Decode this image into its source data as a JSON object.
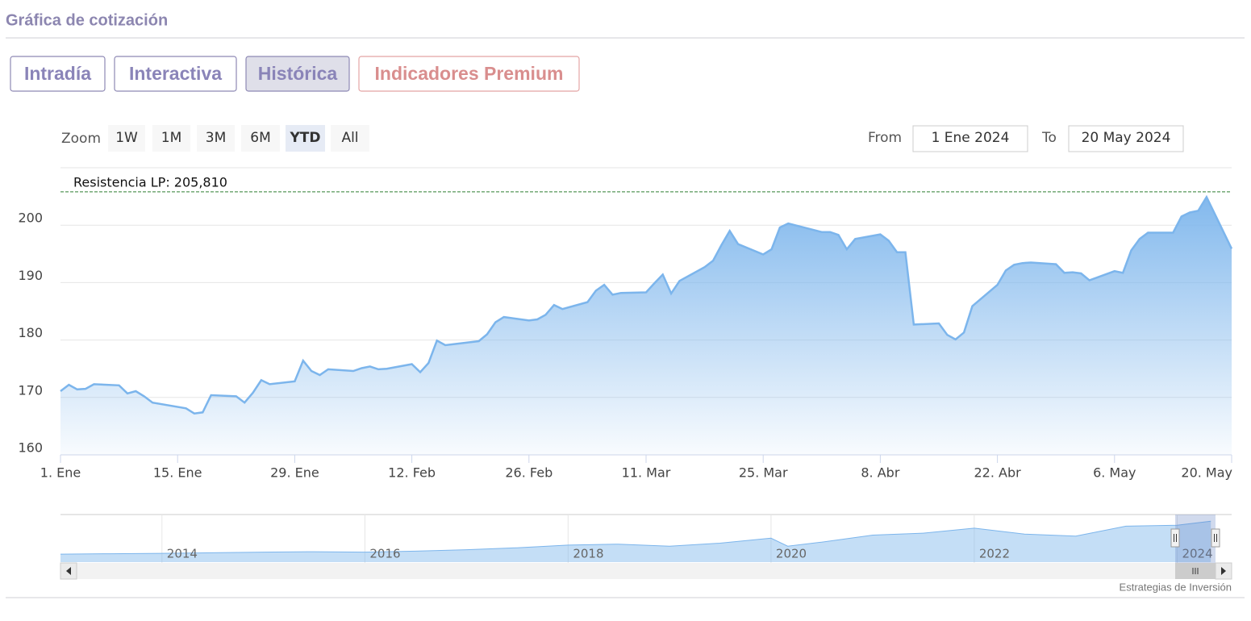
{
  "header": {
    "title": "Gráfica de cotización"
  },
  "tabs": [
    "Intradía",
    "Interactiva",
    "Histórica",
    "Indicadores Premium"
  ],
  "active_tab": 2,
  "zoom": {
    "label": "Zoom",
    "buttons": [
      "1W",
      "1M",
      "3M",
      "6M",
      "YTD",
      "All"
    ],
    "active": 4
  },
  "range": {
    "from_label": "From",
    "from": "1 Ene 2024",
    "to_label": "To",
    "to": "20 May 2024"
  },
  "chart_data": {
    "type": "area",
    "color": "#7cb5ec",
    "grid": true,
    "x": [
      "2024-01-01",
      "2024-01-02",
      "2024-01-03",
      "2024-01-04",
      "2024-01-05",
      "2024-01-08",
      "2024-01-09",
      "2024-01-10",
      "2024-01-11",
      "2024-01-12",
      "2024-01-16",
      "2024-01-17",
      "2024-01-18",
      "2024-01-19",
      "2024-01-22",
      "2024-01-23",
      "2024-01-24",
      "2024-01-25",
      "2024-01-26",
      "2024-01-29",
      "2024-01-30",
      "2024-01-31",
      "2024-02-01",
      "2024-02-02",
      "2024-02-05",
      "2024-02-06",
      "2024-02-07",
      "2024-02-08",
      "2024-02-09",
      "2024-02-12",
      "2024-02-13",
      "2024-02-14",
      "2024-02-15",
      "2024-02-16",
      "2024-02-20",
      "2024-02-21",
      "2024-02-22",
      "2024-02-23",
      "2024-02-26",
      "2024-02-27",
      "2024-02-28",
      "2024-02-29",
      "2024-03-01",
      "2024-03-04",
      "2024-03-05",
      "2024-03-06",
      "2024-03-07",
      "2024-03-08",
      "2024-03-11",
      "2024-03-12",
      "2024-03-13",
      "2024-03-14",
      "2024-03-15",
      "2024-03-18",
      "2024-03-19",
      "2024-03-20",
      "2024-03-21",
      "2024-03-22",
      "2024-03-25",
      "2024-03-26",
      "2024-03-27",
      "2024-03-28",
      "2024-04-01",
      "2024-04-02",
      "2024-04-03",
      "2024-04-04",
      "2024-04-05",
      "2024-04-08",
      "2024-04-09",
      "2024-04-10",
      "2024-04-11",
      "2024-04-12",
      "2024-04-15",
      "2024-04-16",
      "2024-04-17",
      "2024-04-18",
      "2024-04-19",
      "2024-04-22",
      "2024-04-23",
      "2024-04-24",
      "2024-04-25",
      "2024-04-26",
      "2024-04-29",
      "2024-04-30",
      "2024-05-01",
      "2024-05-02",
      "2024-05-03",
      "2024-05-06",
      "2024-05-07",
      "2024-05-08",
      "2024-05-09",
      "2024-05-10",
      "2024-05-13",
      "2024-05-14",
      "2024-05-15",
      "2024-05-16",
      "2024-05-17",
      "2024-05-20"
    ],
    "values": [
      171.1,
      172.2,
      171.4,
      171.5,
      172.3,
      172.1,
      170.7,
      171.1,
      170.2,
      169.1,
      168.1,
      167.2,
      167.4,
      170.4,
      170.2,
      169.1,
      170.8,
      173.0,
      172.3,
      172.8,
      176.4,
      174.6,
      173.9,
      174.9,
      174.6,
      175.1,
      175.4,
      174.9,
      175.0,
      175.8,
      174.4,
      176.0,
      179.9,
      179.1,
      179.8,
      181.0,
      183.1,
      184.0,
      183.4,
      183.6,
      184.4,
      186.1,
      185.4,
      186.6,
      188.6,
      189.6,
      187.9,
      188.2,
      188.3,
      189.9,
      191.4,
      188.1,
      190.3,
      192.7,
      193.8,
      196.5,
      199.0,
      196.7,
      194.9,
      195.8,
      199.6,
      200.3,
      198.8,
      198.8,
      198.3,
      195.8,
      197.6,
      198.4,
      197.3,
      195.3,
      195.3,
      182.7,
      182.9,
      180.9,
      180.1,
      181.3,
      185.9,
      189.6,
      192.1,
      193.1,
      193.4,
      193.5,
      193.2,
      191.7,
      191.8,
      191.6,
      190.4,
      192.0,
      191.7,
      195.6,
      197.6,
      198.7,
      198.7,
      201.5,
      202.2,
      202.5,
      204.9,
      195.9
    ],
    "xlim": [
      "2024-01-01",
      "2024-05-20"
    ],
    "xticks": [
      {
        "value": "2024-01-01",
        "label": "1. Ene"
      },
      {
        "value": "2024-01-15",
        "label": "15. Ene"
      },
      {
        "value": "2024-01-29",
        "label": "29. Ene"
      },
      {
        "value": "2024-02-12",
        "label": "12. Feb"
      },
      {
        "value": "2024-02-26",
        "label": "26. Feb"
      },
      {
        "value": "2024-03-11",
        "label": "11. Mar"
      },
      {
        "value": "2024-03-25",
        "label": "25. Mar"
      },
      {
        "value": "2024-04-08",
        "label": "8. Abr"
      },
      {
        "value": "2024-04-22",
        "label": "22. Abr"
      },
      {
        "value": "2024-05-06",
        "label": "6. May"
      },
      {
        "value": "2024-05-20",
        "label": "20. May"
      }
    ],
    "ylim": [
      160,
      210
    ],
    "yticks": [
      160,
      170,
      180,
      190,
      200
    ],
    "annotations": [
      {
        "value": 205.81,
        "label": "Resistencia LP: 205,810"
      }
    ]
  },
  "navigator": {
    "type": "area",
    "color": "#7cb5ec",
    "x": [
      "2013-01",
      "2013-07",
      "2014-01",
      "2014-07",
      "2015-01",
      "2015-07",
      "2016-01",
      "2016-07",
      "2017-01",
      "2017-07",
      "2018-01",
      "2018-07",
      "2019-01",
      "2019-07",
      "2020-01",
      "2020-03",
      "2020-07",
      "2021-01",
      "2021-07",
      "2022-01",
      "2022-07",
      "2023-01",
      "2023-07",
      "2024-01",
      "2024-05"
    ],
    "values": [
      40,
      42,
      44,
      47,
      50,
      52,
      50,
      55,
      62,
      72,
      85,
      90,
      80,
      95,
      120,
      80,
      100,
      135,
      145,
      170,
      140,
      130,
      180,
      185,
      205
    ],
    "xlim": [
      "2013-01-01",
      "2024-07-15"
    ],
    "ylim": [
      0,
      230
    ],
    "xticks": [
      {
        "value": "2014-01-01",
        "label": "2014"
      },
      {
        "value": "2016-01-01",
        "label": "2016"
      },
      {
        "value": "2018-01-01",
        "label": "2018"
      },
      {
        "value": "2020-01-01",
        "label": "2020"
      },
      {
        "value": "2022-01-01",
        "label": "2022"
      },
      {
        "value": "2024-01-01",
        "label": "2024"
      }
    ]
  },
  "credit": "Estrategias de Inversión"
}
